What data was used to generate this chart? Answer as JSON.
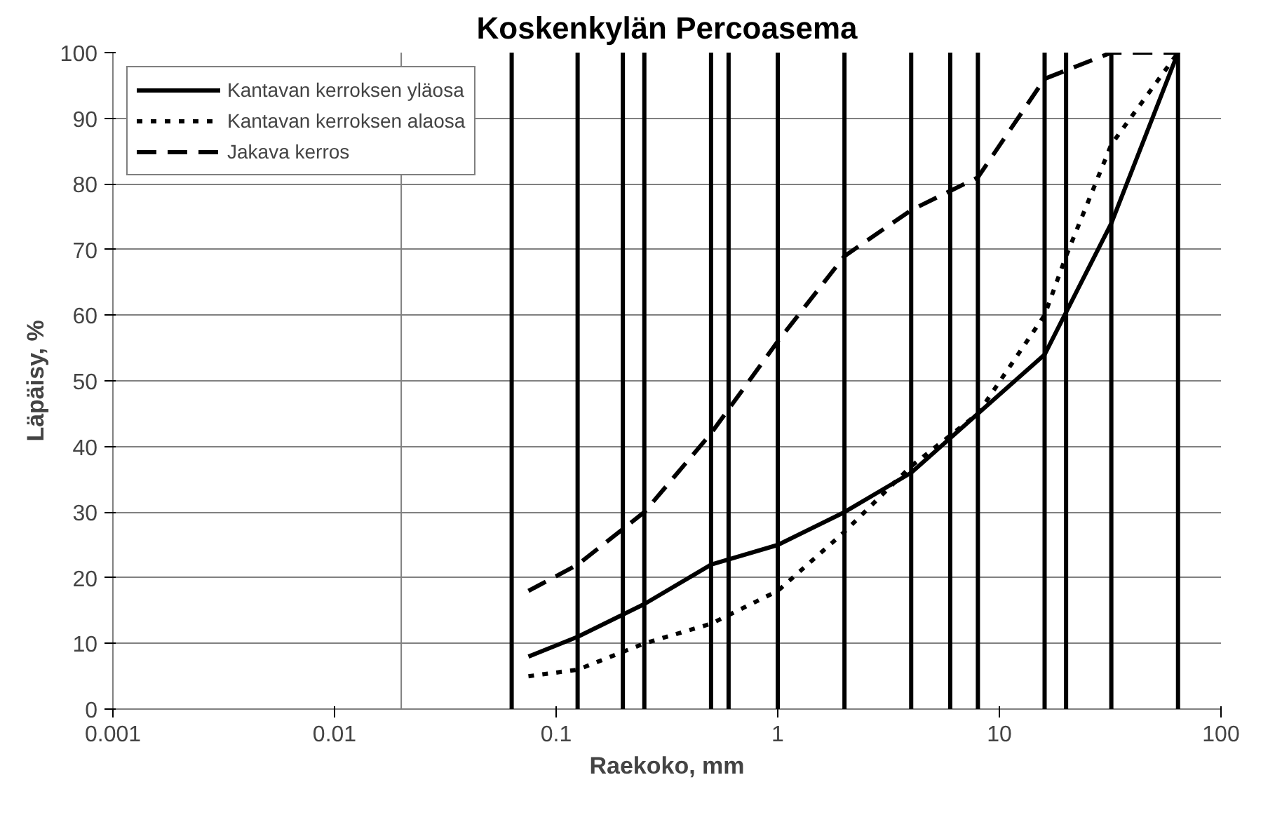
{
  "chart_data": {
    "type": "line",
    "title": "Koskenkylän Percoasema",
    "xlabel": "Raekoko, mm",
    "ylabel": "Läpäisy, %",
    "log": "x",
    "xlim": [
      0.001,
      100
    ],
    "xticks": [
      0.001,
      0.01,
      0.1,
      1,
      10,
      100
    ],
    "ylim": [
      0,
      100
    ],
    "yticks": [
      0,
      10,
      20,
      30,
      40,
      50,
      60,
      70,
      80,
      90,
      100
    ],
    "grid": "y",
    "legend": "top left",
    "series": [
      {
        "name": "Kantavan kerroksen yläosa",
        "color": "#000000",
        "line_style": "solid",
        "x": [
          0.075,
          0.125,
          0.25,
          0.5,
          1,
          2,
          4,
          8,
          16,
          32,
          64
        ],
        "values": [
          8,
          11,
          16,
          22,
          25,
          30,
          36,
          45,
          54,
          74,
          100
        ]
      },
      {
        "name": "Kantavan kerroksen alaosa",
        "color": "#000000",
        "line_style": "dotted",
        "x": [
          0.075,
          0.125,
          0.25,
          0.5,
          1,
          2,
          4,
          8,
          16,
          20,
          32,
          64
        ],
        "values": [
          5,
          6,
          10,
          13,
          18,
          27,
          37,
          45,
          60,
          69,
          86,
          100
        ]
      },
      {
        "name": "Jakava kerros",
        "color": "#000000",
        "line_style": "dashed",
        "x": [
          0.075,
          0.125,
          0.25,
          0.5,
          1,
          2,
          4,
          8,
          16,
          32,
          64
        ],
        "values": [
          18,
          22,
          30,
          42,
          56,
          69,
          76,
          81,
          96,
          100,
          100
        ]
      }
    ],
    "ref_lines": [
      {
        "axis": "x",
        "value": 0.02,
        "color": "#808080"
      },
      {
        "axis": "x",
        "value": 0.063,
        "color": "#000000"
      },
      {
        "axis": "x",
        "value": 0.125,
        "color": "#000000"
      },
      {
        "axis": "x",
        "value": 0.2,
        "color": "#000000"
      },
      {
        "axis": "x",
        "value": 0.25,
        "color": "#000000"
      },
      {
        "axis": "x",
        "value": 0.5,
        "color": "#000000"
      },
      {
        "axis": "x",
        "value": 0.6,
        "color": "#000000"
      },
      {
        "axis": "x",
        "value": 1,
        "color": "#000000"
      },
      {
        "axis": "x",
        "value": 2,
        "color": "#000000"
      },
      {
        "axis": "x",
        "value": 4,
        "color": "#000000"
      },
      {
        "axis": "x",
        "value": 6,
        "color": "#000000"
      },
      {
        "axis": "x",
        "value": 8,
        "color": "#000000"
      },
      {
        "axis": "x",
        "value": 16,
        "color": "#000000"
      },
      {
        "axis": "x",
        "value": 20,
        "color": "#000000"
      },
      {
        "axis": "x",
        "value": 32,
        "color": "#000000"
      },
      {
        "axis": "x",
        "value": 64,
        "color": "#000000"
      }
    ]
  }
}
